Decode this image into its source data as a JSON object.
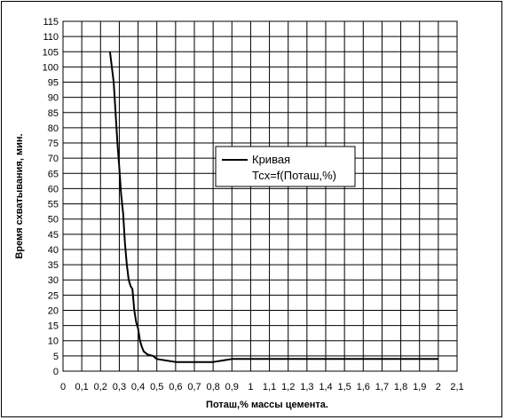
{
  "chart_data": {
    "type": "line",
    "xlabel": "Поташ,% массы цемента.",
    "ylabel": "Время схватывания, мин.",
    "xlim": [
      0,
      2.1
    ],
    "ylim": [
      0,
      115
    ],
    "x_ticks": [
      "0",
      "0,1",
      "0,2",
      "0,3",
      "0,4",
      "0,5",
      "0,6",
      "0,7",
      "0,8",
      "0,9",
      "1",
      "1,1",
      "1,2",
      "1,3",
      "1,4",
      "1,5",
      "1,6",
      "1,7",
      "1,8",
      "1,9",
      "2",
      "2,1"
    ],
    "y_ticks": [
      "0",
      "5",
      "10",
      "15",
      "20",
      "25",
      "30",
      "35",
      "40",
      "45",
      "50",
      "55",
      "60",
      "65",
      "70",
      "75",
      "80",
      "85",
      "90",
      "95",
      "100",
      "105",
      "110",
      "115"
    ],
    "grid": true,
    "legend_placement": "center-right",
    "series": [
      {
        "name": "Кривая Тсх=f(Поташ,%)",
        "color": "#000000",
        "x": [
          0.25,
          0.27,
          0.28,
          0.29,
          0.3,
          0.31,
          0.32,
          0.33,
          0.34,
          0.35,
          0.36,
          0.37,
          0.38,
          0.39,
          0.4,
          0.41,
          0.42,
          0.43,
          0.45,
          0.48,
          0.5,
          0.55,
          0.6,
          0.7,
          0.8,
          0.85,
          0.9,
          1.0,
          1.2,
          1.5,
          1.8,
          2.0
        ],
        "y": [
          105,
          95,
          85,
          75,
          67,
          58,
          52,
          42,
          35,
          30,
          28,
          27,
          20,
          16,
          14,
          10,
          8,
          6.5,
          5.5,
          5,
          4,
          3.5,
          3,
          3,
          3,
          3.5,
          4,
          4,
          4,
          4,
          4,
          4
        ]
      }
    ]
  },
  "legend": {
    "line1": "Кривая",
    "line2": "Тсх=f(Поташ,%)"
  }
}
